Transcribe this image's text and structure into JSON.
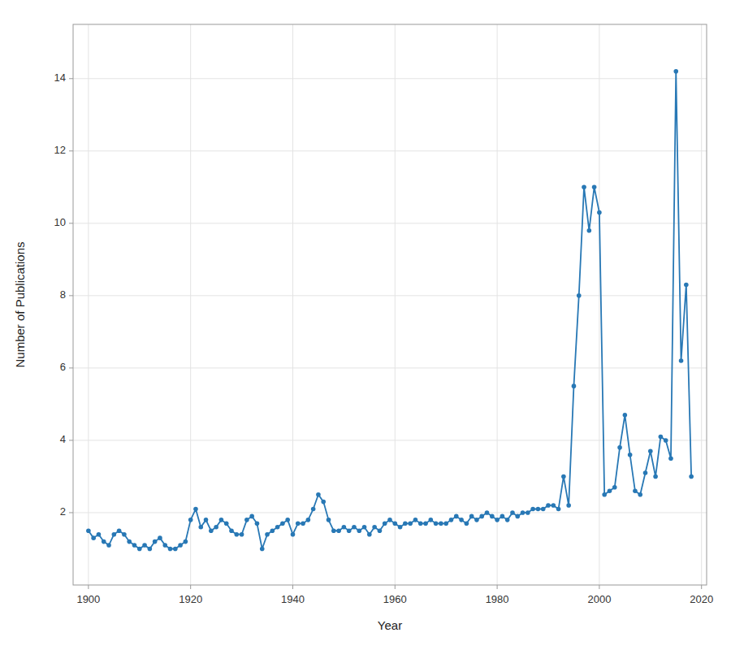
{
  "chart_data": {
    "type": "line",
    "x": [
      1900,
      1901,
      1902,
      1903,
      1904,
      1905,
      1906,
      1907,
      1908,
      1909,
      1910,
      1911,
      1912,
      1913,
      1914,
      1915,
      1916,
      1917,
      1918,
      1919,
      1920,
      1921,
      1922,
      1923,
      1924,
      1925,
      1926,
      1927,
      1928,
      1929,
      1930,
      1931,
      1932,
      1933,
      1934,
      1935,
      1936,
      1937,
      1938,
      1939,
      1940,
      1941,
      1942,
      1943,
      1944,
      1945,
      1946,
      1947,
      1948,
      1949,
      1950,
      1951,
      1952,
      1953,
      1954,
      1955,
      1956,
      1957,
      1958,
      1959,
      1960,
      1961,
      1962,
      1963,
      1964,
      1965,
      1966,
      1967,
      1968,
      1969,
      1970,
      1971,
      1972,
      1973,
      1974,
      1975,
      1976,
      1977,
      1978,
      1979,
      1980,
      1981,
      1982,
      1983,
      1984,
      1985,
      1986,
      1987,
      1988,
      1989,
      1990,
      1991,
      1992,
      1993,
      1994,
      1995,
      1996,
      1997,
      1998,
      1999,
      2000,
      2001,
      2002,
      2003,
      2004,
      2005,
      2006,
      2007,
      2008,
      2009,
      2010,
      2011,
      2012,
      2013,
      2014,
      2015,
      2016,
      2017,
      2018
    ],
    "values": [
      1.5,
      1.3,
      1.4,
      1.2,
      1.1,
      1.4,
      1.5,
      1.4,
      1.2,
      1.1,
      1.0,
      1.1,
      1.0,
      1.2,
      1.3,
      1.1,
      1.0,
      1.0,
      1.1,
      1.2,
      1.8,
      2.1,
      1.6,
      1.8,
      1.5,
      1.6,
      1.8,
      1.7,
      1.5,
      1.4,
      1.4,
      1.8,
      1.9,
      1.7,
      1.0,
      1.4,
      1.5,
      1.6,
      1.7,
      1.8,
      1.4,
      1.7,
      1.7,
      1.8,
      2.1,
      2.5,
      2.3,
      1.8,
      1.5,
      1.5,
      1.6,
      1.5,
      1.6,
      1.5,
      1.6,
      1.4,
      1.6,
      1.5,
      1.7,
      1.8,
      1.7,
      1.6,
      1.7,
      1.7,
      1.8,
      1.7,
      1.7,
      1.8,
      1.7,
      1.7,
      1.7,
      1.8,
      1.9,
      1.8,
      1.7,
      1.9,
      1.8,
      1.9,
      2.0,
      1.9,
      1.8,
      1.9,
      1.8,
      2.0,
      1.9,
      2.0,
      2.0,
      2.1,
      2.1,
      2.1,
      2.2,
      2.2,
      2.1,
      3.0,
      2.2,
      5.5,
      8.0,
      11.0,
      9.8,
      11.0,
      10.3,
      2.5,
      2.6,
      2.7,
      3.8,
      4.7,
      3.6,
      2.6,
      2.5,
      3.1,
      3.7,
      3.0,
      4.1,
      4.0,
      3.5,
      14.2,
      6.2,
      8.3,
      3.0
    ],
    "color": "#2878b5",
    "marker": "circle",
    "xlabel": "Year",
    "ylabel": "Number of Publications",
    "xlim": [
      1897,
      2021
    ],
    "ylim": [
      0,
      15.5
    ],
    "xticks": [
      1900,
      1920,
      1940,
      1960,
      1980,
      2000,
      2020
    ],
    "yticks": [
      2,
      4,
      6,
      8,
      10,
      12,
      14
    ],
    "grid": true
  }
}
